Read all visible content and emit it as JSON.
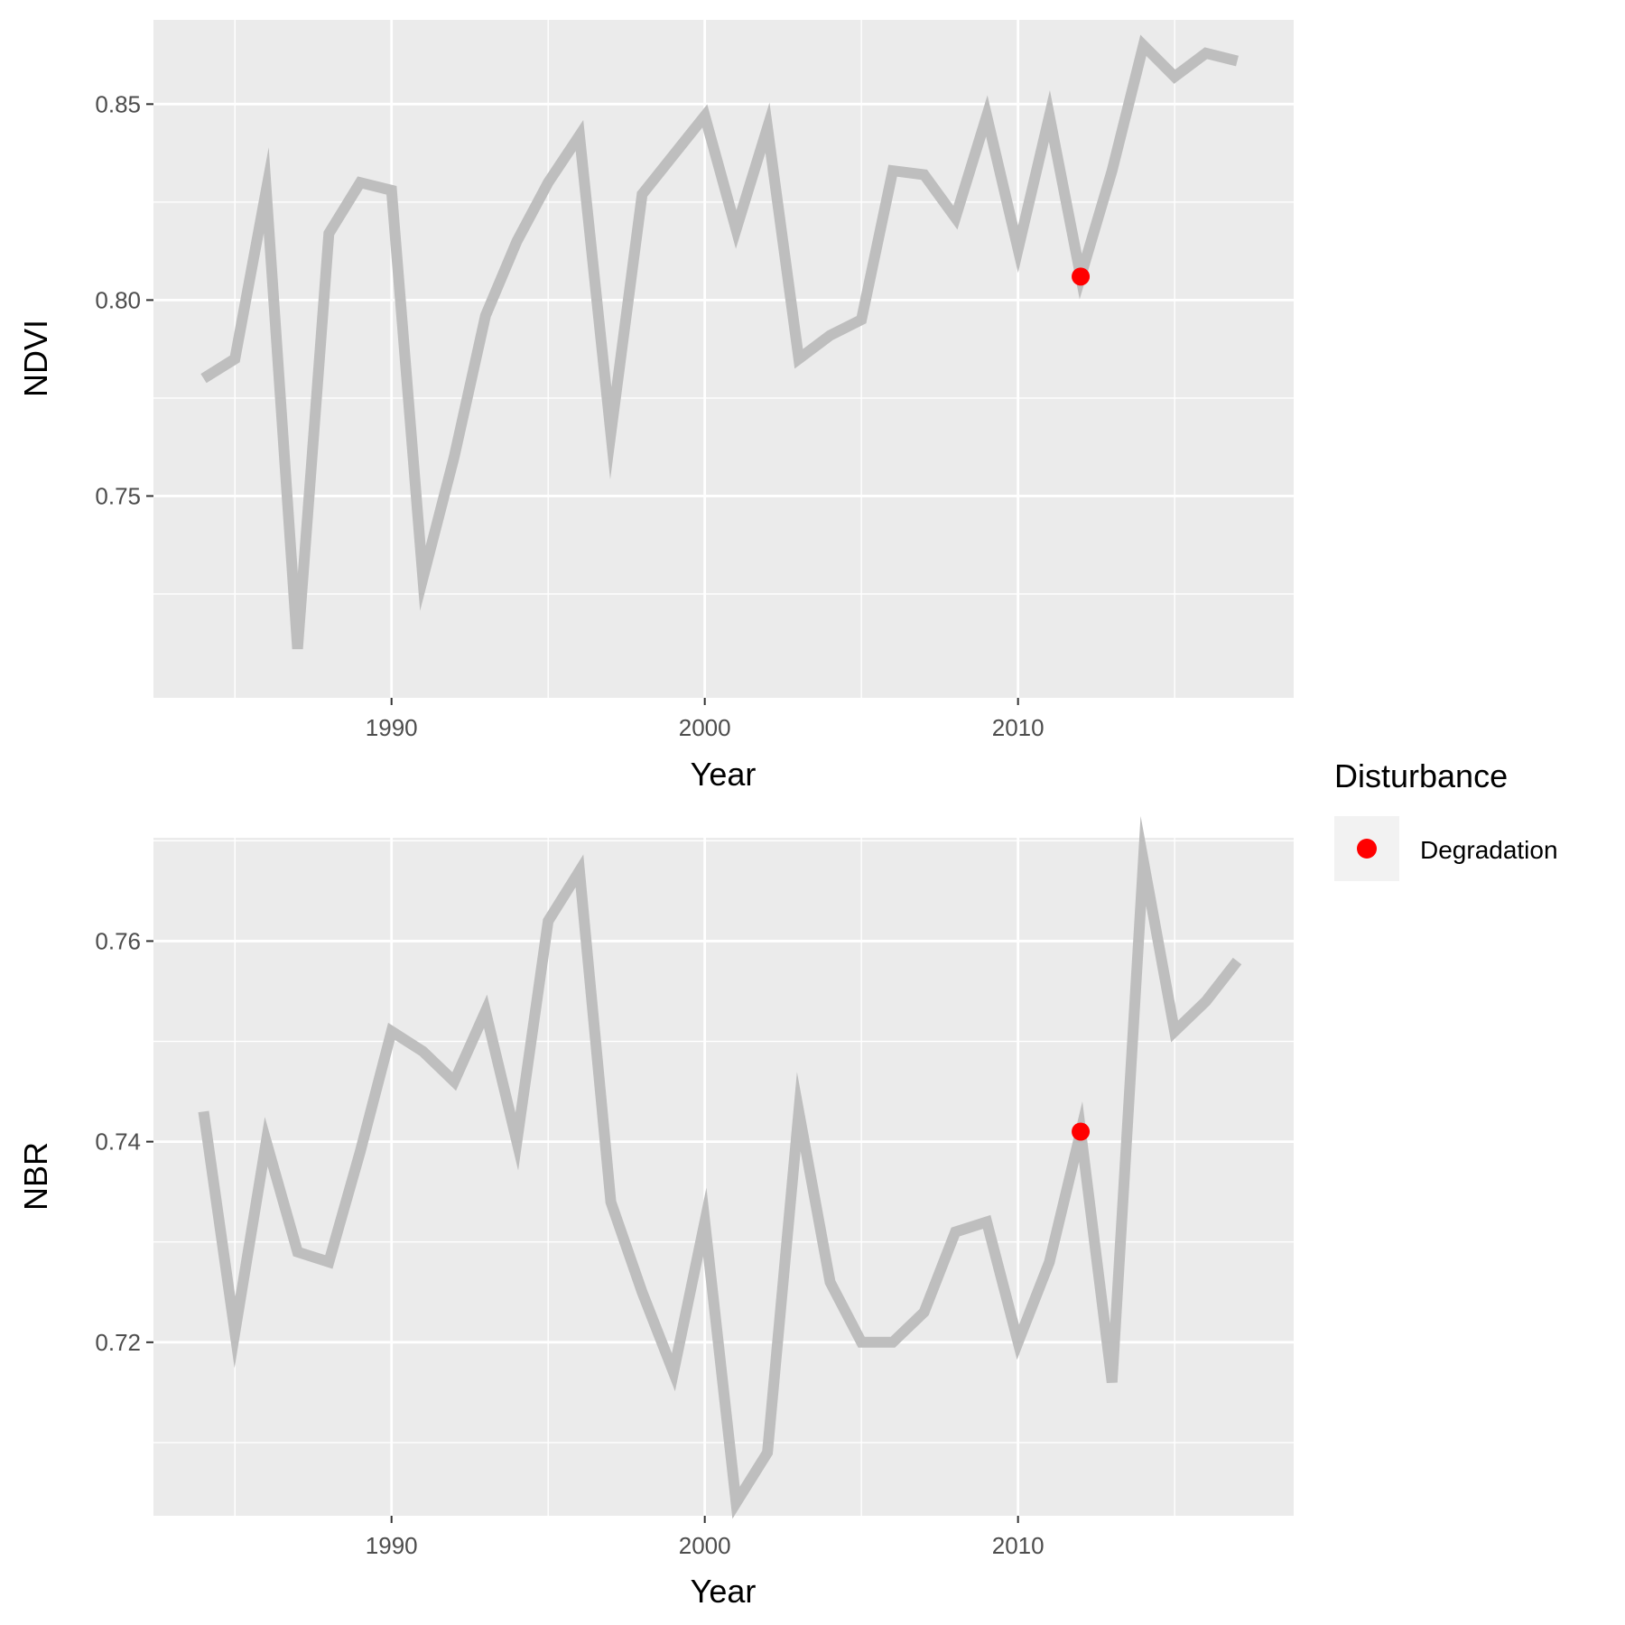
{
  "chart_data": [
    {
      "type": "line",
      "ylabel": "NDVI",
      "xlabel": "Year",
      "xlim": [
        1982.4,
        2018.8
      ],
      "ylim": [
        0.6985,
        0.8715
      ],
      "x_ticks": [
        1990,
        2000,
        2010
      ],
      "x_tick_labels": [
        "1990",
        "2000",
        "2010"
      ],
      "y_ticks": [
        0.75,
        0.8,
        0.85
      ],
      "y_tick_labels": [
        "0.75",
        "0.80",
        "0.85"
      ],
      "grid": true,
      "series": [
        {
          "color": "#bebebe",
          "x": [
            1984,
            1985,
            1986,
            1987,
            1988,
            1989,
            1990,
            1991,
            1992,
            1993,
            1994,
            1995,
            1996,
            1997,
            1998,
            1999,
            2000,
            2001,
            2002,
            2003,
            2004,
            2005,
            2006,
            2007,
            2008,
            2009,
            2010,
            2011,
            2012,
            2013,
            2014,
            2015,
            2016,
            2017
          ],
          "y": [
            0.78,
            0.785,
            0.828,
            0.711,
            0.817,
            0.83,
            0.828,
            0.729,
            0.76,
            0.796,
            0.815,
            0.83,
            0.842,
            0.766,
            0.827,
            0.837,
            0.847,
            0.818,
            0.844,
            0.785,
            0.791,
            0.795,
            0.833,
            0.832,
            0.821,
            0.847,
            0.813,
            0.847,
            0.806,
            0.833,
            0.865,
            0.857,
            0.863,
            0.861
          ]
        }
      ],
      "points": [
        {
          "name": "Degradation",
          "x": 2012,
          "y": 0.806,
          "color": "#ff0000"
        }
      ]
    },
    {
      "type": "line",
      "ylabel": "NBR",
      "xlabel": "Year",
      "xlim": [
        1982.4,
        2018.8
      ],
      "ylim": [
        0.7027,
        0.7703
      ],
      "x_ticks": [
        1990,
        2000,
        2010
      ],
      "x_tick_labels": [
        "1990",
        "2000",
        "2010"
      ],
      "y_ticks": [
        0.72,
        0.74,
        0.76
      ],
      "y_tick_labels": [
        "0.72",
        "0.74",
        "0.76"
      ],
      "grid": true,
      "series": [
        {
          "color": "#bebebe",
          "x": [
            1984,
            1985,
            1986,
            1987,
            1988,
            1989,
            1990,
            1991,
            1992,
            1993,
            1994,
            1995,
            1996,
            1997,
            1998,
            1999,
            2000,
            2001,
            2002,
            2003,
            2004,
            2005,
            2006,
            2007,
            2008,
            2009,
            2010,
            2011,
            2012,
            2013,
            2014,
            2015,
            2016,
            2017
          ],
          "y": [
            0.743,
            0.721,
            0.74,
            0.729,
            0.728,
            0.739,
            0.751,
            0.749,
            0.746,
            0.753,
            0.74,
            0.762,
            0.767,
            0.734,
            0.725,
            0.717,
            0.732,
            0.704,
            0.709,
            0.743,
            0.726,
            0.72,
            0.72,
            0.723,
            0.731,
            0.732,
            0.72,
            0.728,
            0.741,
            0.716,
            0.768,
            0.751,
            0.754,
            0.758
          ]
        }
      ],
      "points": [
        {
          "name": "Degradation",
          "x": 2012,
          "y": 0.741,
          "color": "#ff0000"
        }
      ]
    }
  ],
  "legend": {
    "title": "Disturbance",
    "placement": "right",
    "items": [
      {
        "label": "Degradation",
        "color": "#ff0000"
      }
    ]
  }
}
